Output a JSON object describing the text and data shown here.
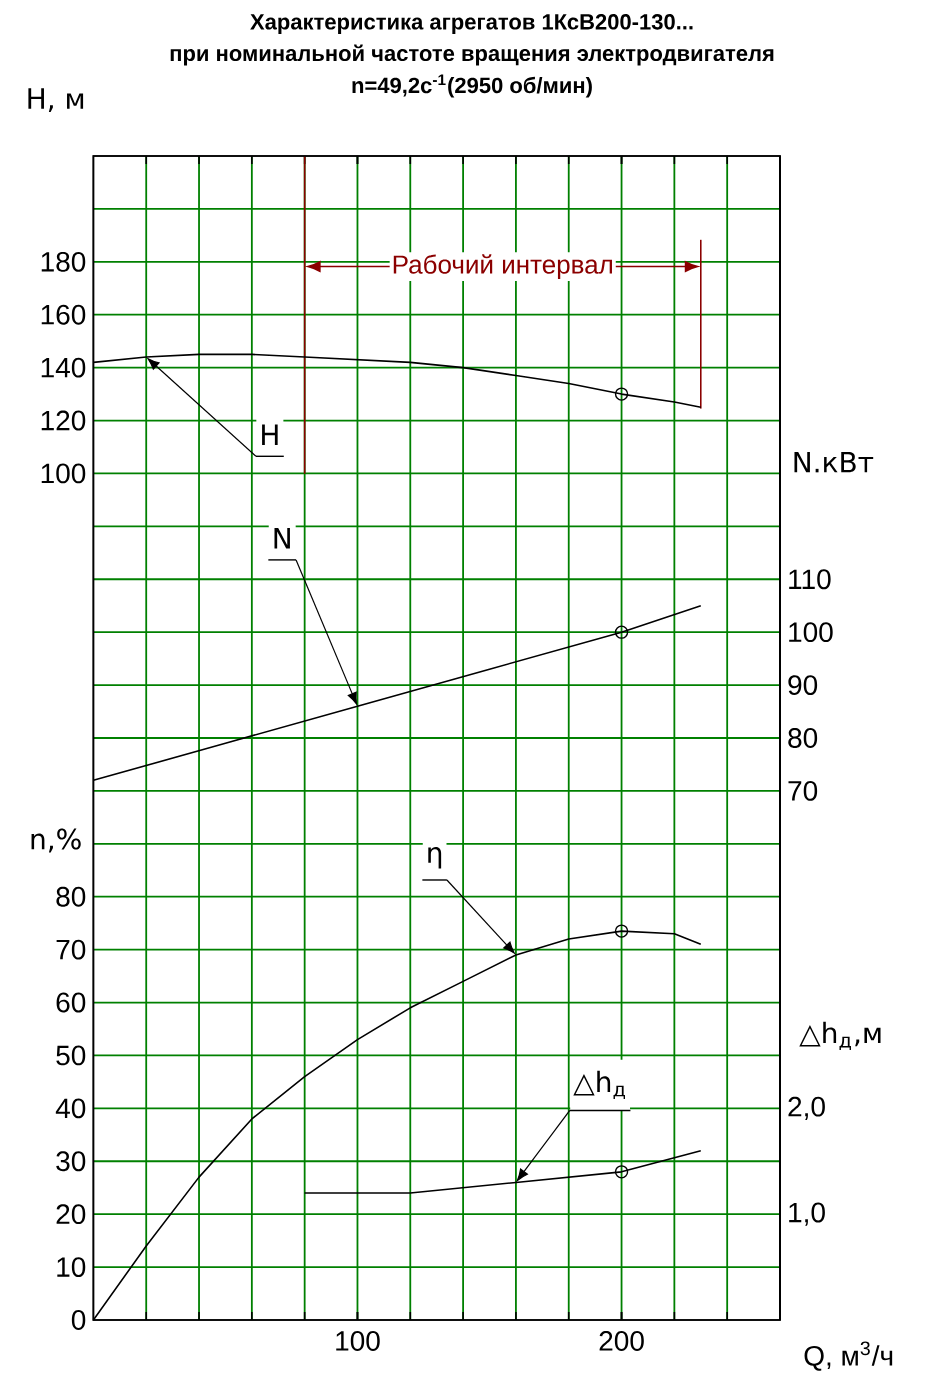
{
  "chart_data": [
    {
      "type": "line",
      "title": "Характеристика агрегатов 1КсВ200-130...",
      "subtitle": "при номинальной частоте вращения электродвигателя",
      "annotations": [
        "n=49,2с$^{-1}$(2950 об/мин)"
      ],
      "ylabel": "H, м",
      "y2label": "N.кВт",
      "xlim": [
        0,
        260
      ],
      "xticks": [
        20,
        40,
        60,
        80,
        100,
        120,
        140,
        160,
        180,
        200,
        220,
        240
      ],
      "tick_labels": "y",
      "ylim": [
        -220,
        220
      ],
      "yticks": [
        {
          "value": -200,
          "label": null
        },
        {
          "value": -180,
          "label": null
        },
        {
          "value": -160,
          "label": null
        },
        {
          "value": -140,
          "label": null
        },
        {
          "value": -120,
          "label": null
        },
        {
          "value": -100,
          "label": null
        },
        {
          "value": -80,
          "label": null
        },
        {
          "value": -60,
          "label": null
        },
        {
          "value": -40,
          "label": null
        },
        {
          "value": -20,
          "label": null
        },
        {
          "value": 0,
          "label": null
        },
        {
          "value": 20,
          "label": null
        },
        {
          "value": 40,
          "label": null
        },
        {
          "value": 60,
          "label": null
        },
        {
          "value": 80,
          "label": null
        },
        100,
        120,
        140,
        160,
        180,
        {
          "value": 200,
          "label": null
        }
      ],
      "y2lim": [
        -30,
        190
      ],
      "y2ticks": [
        70,
        80,
        90,
        100,
        110
      ],
      "grid": true,
      "ref_lines": [
        {
          "axis": "x",
          "value": 80,
          "label": "Рабочий интервал",
          "color": "#8b0000"
        },
        {
          "axis": "x",
          "value": 230,
          "color": "#8b0000"
        }
      ],
      "series": [
        {
          "name": "H",
          "color": "#000000",
          "x": [
            0,
            20,
            40,
            60,
            80,
            100,
            120,
            140,
            160,
            180,
            200,
            220,
            230
          ],
          "values": [
            142,
            144,
            145,
            145,
            144,
            143,
            142,
            140,
            137,
            134,
            130,
            127,
            125
          ]
        },
        {
          "name": "N",
          "axis": "y2",
          "color": "#000000",
          "x": [
            0,
            50,
            100,
            150,
            200,
            230
          ],
          "values": [
            72,
            79,
            86,
            93,
            100,
            105
          ]
        },
        {
          "type": "scatter",
          "color": "#000000",
          "marker": "circle",
          "x": [
            200
          ],
          "values": [
            130
          ]
        },
        {
          "type": "scatter",
          "axis": "y2",
          "color": "#000000",
          "marker": "circle",
          "x": [
            200
          ],
          "values": [
            100
          ]
        }
      ]
    },
    {
      "type": "line",
      "xlabel": "Q, м$^{3}$/ч",
      "ylabel": "n,%",
      "y2label": "△h$_{д}$,м",
      "xlim": [
        0,
        260
      ],
      "xticks": [
        100,
        200
      ],
      "ylim": [
        0,
        220
      ],
      "yticks": [
        0,
        10,
        20,
        30,
        40,
        50,
        60,
        70,
        80
      ],
      "y2lim": [
        0,
        11
      ],
      "y2ticks": [
        {
          "value": 1,
          "label": "1,0"
        },
        {
          "value": 2,
          "label": "2,0"
        }
      ],
      "series": [
        {
          "name": "η",
          "color": "#000000",
          "x": [
            0,
            20,
            40,
            60,
            80,
            100,
            120,
            140,
            160,
            180,
            200,
            220,
            230
          ],
          "values": [
            0,
            14,
            27,
            38,
            46,
            53,
            59,
            64,
            69,
            72,
            73.5,
            73,
            71
          ]
        },
        {
          "name": "△h$_{д}$",
          "axis": "y2",
          "color": "#000000",
          "x": [
            80,
            120,
            160,
            200,
            230
          ],
          "values": [
            1.2,
            1.2,
            1.3,
            1.4,
            1.6
          ]
        },
        {
          "type": "scatter",
          "color": "#000000",
          "marker": "circle",
          "x": [
            200
          ],
          "values": [
            73.5
          ]
        },
        {
          "type": "scatter",
          "axis": "y2",
          "color": "#000000",
          "marker": "circle",
          "x": [
            200
          ],
          "values": [
            1.4
          ]
        }
      ]
    }
  ]
}
